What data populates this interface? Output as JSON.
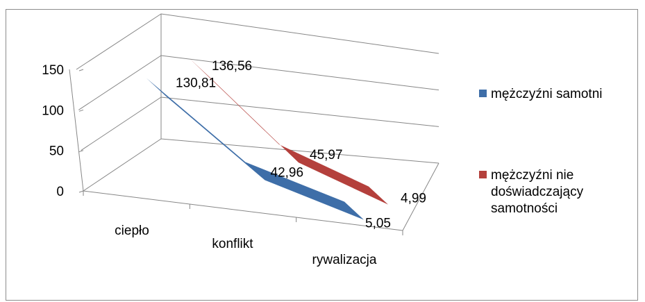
{
  "chart_data": {
    "type": "line",
    "categories": [
      "ciepło",
      "konflikt",
      "rywalizacja"
    ],
    "ylim": [
      0,
      150
    ],
    "yticks": [
      "0",
      "50",
      "100",
      "150"
    ],
    "series": [
      {
        "name": "mężczyźni samotni",
        "values": [
          130.81,
          42.96,
          5.05
        ],
        "labels": [
          "130,81",
          "42,96",
          "5,05"
        ],
        "color": "#3e6ea8"
      },
      {
        "name": "mężczyźni nie doświadczający samotności",
        "values": [
          136.56,
          45.97,
          4.99
        ],
        "labels": [
          "136,56",
          "45,97",
          "4,99"
        ],
        "color": "#b4403c"
      }
    ],
    "legend_position": "right",
    "grid": true,
    "style": "3d"
  }
}
